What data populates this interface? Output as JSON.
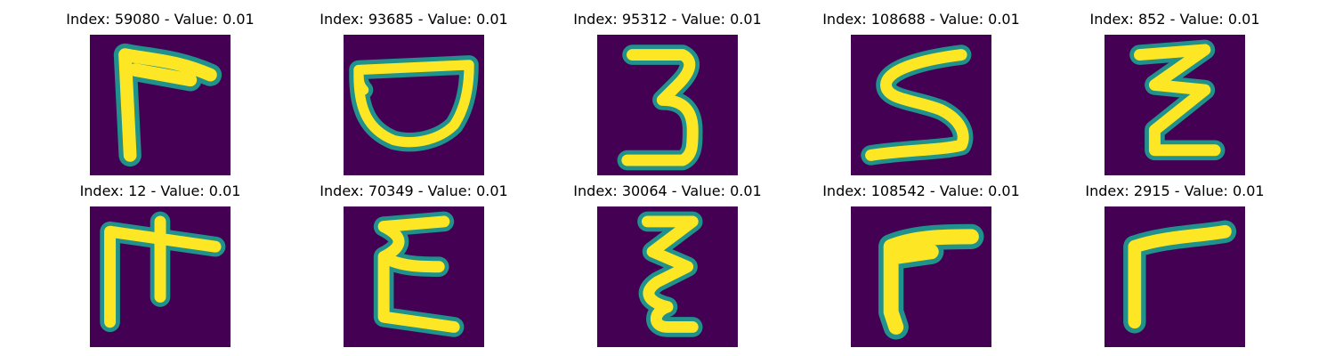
{
  "panels": [
    {
      "index_label": "Index: 59080 - Value: 0.01",
      "glyph": "angle-bracket-top-left"
    },
    {
      "index_label": "Index: 93685 - Value: 0.01",
      "glyph": "bowl-shape"
    },
    {
      "index_label": "Index: 95312 - Value: 0.01",
      "glyph": "digit-three"
    },
    {
      "index_label": "Index: 108688 - Value: 0.01",
      "glyph": "s-shape"
    },
    {
      "index_label": "Index: 852 - Value: 0.01",
      "glyph": "zigzag-z"
    },
    {
      "index_label": "Index: 12 - Value: 0.01",
      "glyph": "gate-shape"
    },
    {
      "index_label": "Index: 70349 - Value: 0.01",
      "glyph": "epsilon-shape"
    },
    {
      "index_label": "Index: 30064 - Value: 0.01",
      "glyph": "zigzag-vertical"
    },
    {
      "index_label": "Index: 108542 - Value: 0.01",
      "glyph": "angle-bracket-top-left"
    },
    {
      "index_label": "Index: 2915 - Value: 0.01",
      "glyph": "angle-bracket-top-left"
    }
  ],
  "colors": {
    "background": "#440154",
    "stroke_edge": "#21918c",
    "stroke_core": "#fde725"
  }
}
